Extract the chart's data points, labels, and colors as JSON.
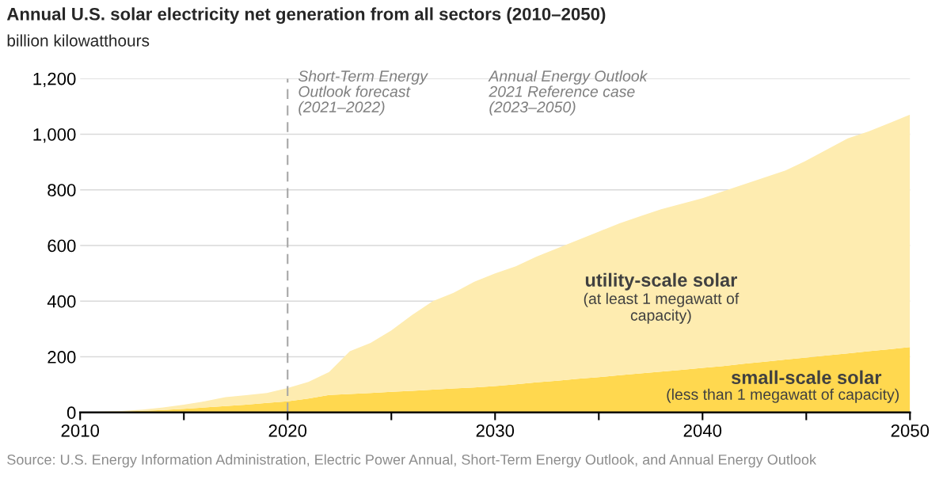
{
  "chart_data": {
    "type": "area",
    "stacked": true,
    "title": "Annual U.S. solar electricity net generation from all sectors (2010–2050)",
    "subtitle": "billion kilowatthours",
    "x": [
      2010,
      2011,
      2012,
      2013,
      2014,
      2015,
      2016,
      2017,
      2018,
      2019,
      2020,
      2021,
      2022,
      2023,
      2024,
      2025,
      2026,
      2027,
      2028,
      2029,
      2030,
      2031,
      2032,
      2033,
      2034,
      2035,
      2036,
      2037,
      2038,
      2039,
      2040,
      2041,
      2042,
      2043,
      2044,
      2045,
      2046,
      2047,
      2048,
      2049,
      2050
    ],
    "series": [
      {
        "name": "small-scale solar",
        "color": "#ffd84f",
        "values": [
          0,
          1,
          3,
          6,
          9,
          13,
          18,
          23,
          28,
          34,
          40,
          50,
          63,
          66,
          70,
          74,
          78,
          82,
          86,
          90,
          95,
          101,
          108,
          114,
          121,
          127,
          134,
          140,
          147,
          153,
          160,
          167,
          175,
          182,
          190,
          197,
          205,
          212,
          220,
          227,
          235
        ]
      },
      {
        "name": "utility-scale solar",
        "color": "#feecb0",
        "values": [
          1,
          2,
          2,
          4,
          9,
          15,
          22,
          32,
          34,
          36,
          48,
          60,
          82,
          154,
          180,
          221,
          272,
          318,
          344,
          380,
          405,
          424,
          452,
          476,
          499,
          523,
          546,
          565,
          583,
          597,
          610,
          628,
          645,
          663,
          680,
          708,
          740,
          773,
          790,
          813,
          835
        ]
      }
    ],
    "xlim": [
      2010,
      2050
    ],
    "xticks": [
      2010,
      {
        "value": 2015,
        "label": null
      },
      2020,
      {
        "value": 2025,
        "label": null
      },
      2030,
      {
        "value": 2035,
        "label": null
      },
      2040,
      {
        "value": 2045,
        "label": null
      },
      2050
    ],
    "ylim": [
      0,
      1200
    ],
    "yticks": [
      {
        "value": 0,
        "label": "0"
      },
      {
        "value": 200,
        "label": "200"
      },
      {
        "value": 400,
        "label": "400"
      },
      {
        "value": 600,
        "label": "600"
      },
      {
        "value": 800,
        "label": "800"
      },
      {
        "value": 1000,
        "label": "1,000"
      },
      {
        "value": 1200,
        "label": "1,200"
      }
    ],
    "grid": "y",
    "ref_lines": [
      {
        "axis": "x",
        "value": 2020,
        "label": "Short-Term Energy\nOutlook forecast\n(2021–2022)",
        "color": "#a6a6a6",
        "line_style": "dashed"
      }
    ],
    "annotations": [
      "Annual Energy Outlook\n2021 Reference case\n(2023–2050)",
      "(less than 1 megawatt of capacity)",
      "(at least 1 megawatt of\ncapacity)",
      "Source: U.S. Energy Information Administration, Electric Power Annual, Short-Term Energy Outlook, and Annual Energy Outlook"
    ]
  }
}
